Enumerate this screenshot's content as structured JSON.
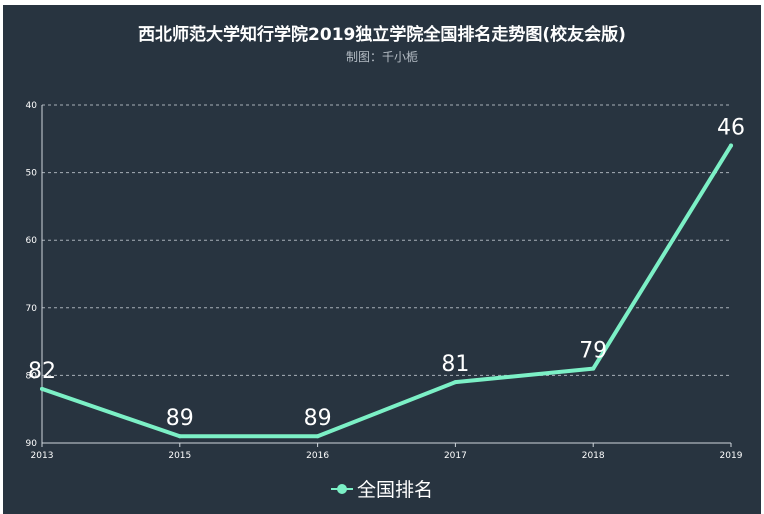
{
  "header": {
    "title": "西北师范大学知行学院2019独立学院全国排名走势图(校友会版)",
    "subtitle": "制图：千小栀"
  },
  "legend": {
    "label": "全国排名",
    "icon": "line-circle-marker-icon"
  },
  "colors": {
    "background": "#283440",
    "series": "#7cf0c6",
    "text": "#ffffff",
    "axis": "#cfd6dc",
    "grid": "#c8d0d6"
  },
  "chart_data": {
    "type": "line",
    "title": "西北师范大学知行学院2019独立学院全国排名走势图(校友会版)",
    "subtitle": "制图：千小栀",
    "x": [
      "2013",
      "2015",
      "2016",
      "2017",
      "2018",
      "2019"
    ],
    "series": [
      {
        "name": "全国排名",
        "values": [
          82,
          89,
          89,
          81,
          79,
          46
        ]
      }
    ],
    "y_ticks": [
      40,
      50,
      60,
      70,
      80,
      90
    ],
    "ylim": [
      40,
      90
    ],
    "y_inverted": true,
    "grid": "horizontal-dashed",
    "legend_position": "bottom",
    "data_labels": true
  }
}
